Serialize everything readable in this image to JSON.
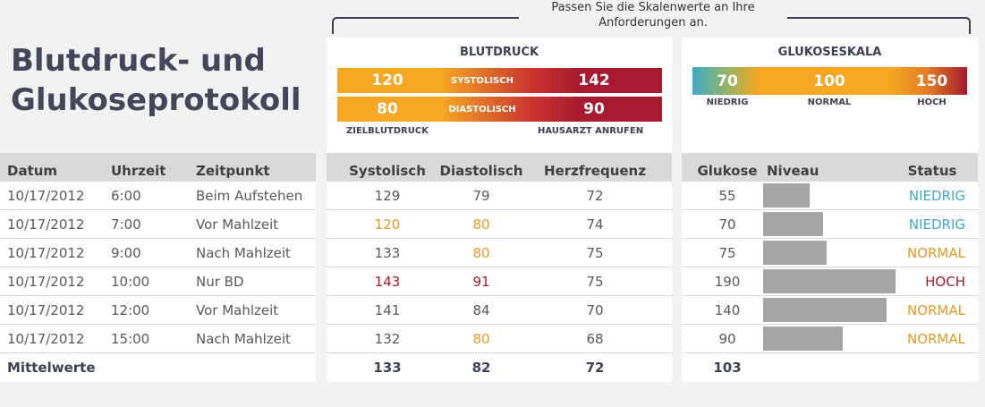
{
  "title_line1": "Blutdruck- und",
  "title_line2": "Glukoseprotokoll",
  "hint": "Passen Sie die Skalenwerte an Ihre Anforderungen an.",
  "bp": {
    "title": "BLUTDRUCK",
    "systolic": {
      "low": "120",
      "label": "SYSTOLISCH",
      "high": "142"
    },
    "diastolic": {
      "low": "80",
      "label": "DIASTOLISCH",
      "high": "90"
    },
    "target_label": "ZIELBLUTDRUCK",
    "call_label": "HAUSARZT ANRUFEN"
  },
  "glucose_scale": {
    "title": "GLUKOSESKALA",
    "low": "70",
    "normal": "100",
    "high": "150",
    "low_label": "NIEDRIG",
    "normal_label": "NORMAL",
    "high_label": "HOCH"
  },
  "headers": {
    "date": "Datum",
    "time": "Uhrzeit",
    "moment": "Zeitpunkt",
    "systolic": "Systolisch",
    "diastolic": "Diastolisch",
    "heart_rate": "Herzfrequenz",
    "glucose": "Glukose",
    "level": "Niveau",
    "status": "Status"
  },
  "rows": [
    {
      "date": "10/17/2012",
      "time": "6:00",
      "moment": "Beim Aufstehen",
      "sys": "129",
      "dia": "79",
      "hr": "72",
      "glucose": "55",
      "level": 0.35,
      "status": "NIEDRIG"
    },
    {
      "date": "10/17/2012",
      "time": "7:00",
      "moment": "Vor Mahlzeit",
      "sys": "120",
      "dia": "80",
      "hr": "74",
      "glucose": "70",
      "level": 0.45,
      "status": "NIEDRIG"
    },
    {
      "date": "10/17/2012",
      "time": "9:00",
      "moment": "Nach Mahlzeit",
      "sys": "133",
      "dia": "80",
      "hr": "75",
      "glucose": "75",
      "level": 0.48,
      "status": "NORMAL"
    },
    {
      "date": "10/17/2012",
      "time": "10:00",
      "moment": "Nur BD",
      "sys": "143",
      "dia": "91",
      "hr": "75",
      "glucose": "190",
      "level": 1.0,
      "status": "HOCH"
    },
    {
      "date": "10/17/2012",
      "time": "12:00",
      "moment": "Vor Mahlzeit",
      "sys": "141",
      "dia": "84",
      "hr": "70",
      "glucose": "140",
      "level": 0.93,
      "status": "NORMAL"
    },
    {
      "date": "10/17/2012",
      "time": "15:00",
      "moment": "Nach Mahlzeit",
      "sys": "132",
      "dia": "80",
      "hr": "68",
      "glucose": "90",
      "level": 0.6,
      "status": "NORMAL"
    }
  ],
  "averages": {
    "label": "Mittelwerte",
    "sys": "133",
    "dia": "82",
    "hr": "72",
    "glucose": "103"
  },
  "colors": {
    "orange": "#f5a623",
    "red": "#a6192e",
    "teal": "#3fa9c9",
    "status_low": "#3fa9c9",
    "status_normal": "#e39a23",
    "status_high": "#a6192e",
    "sys_target": "#e39a23",
    "sys_high": "#a6192e"
  }
}
